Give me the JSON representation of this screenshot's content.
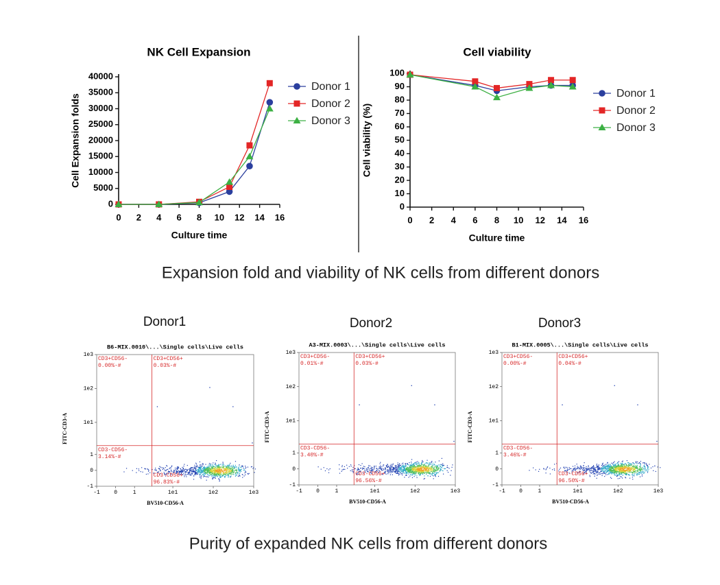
{
  "captions": [
    "Expansion fold and viability of NK cells from different donors",
    "Purity of expanded NK cells from different donors"
  ],
  "chart_data": [
    {
      "type": "line",
      "title": "NK Cell Expansion",
      "x_label": "Culture time",
      "y_label": "Cell Expansion folds",
      "x": [
        0,
        4,
        8,
        11,
        13,
        15
      ],
      "xlim": [
        0,
        16
      ],
      "xticks": [
        0,
        2,
        4,
        6,
        8,
        10,
        12,
        14,
        16
      ],
      "ylim": [
        0,
        40000
      ],
      "yticks": [
        0,
        5000,
        10000,
        15000,
        20000,
        25000,
        30000,
        35000,
        40000
      ],
      "legend": "right",
      "series": [
        {
          "name": "Donor 1",
          "color": "#2b3f9e",
          "marker": "circle",
          "values": [
            0,
            0,
            500,
            4000,
            12000,
            32000
          ]
        },
        {
          "name": "Donor 2",
          "color": "#e32626",
          "marker": "square",
          "values": [
            0,
            0,
            800,
            5500,
            18500,
            38000
          ]
        },
        {
          "name": "Donor 3",
          "color": "#3cb043",
          "marker": "triangle",
          "values": [
            0,
            0,
            600,
            7000,
            15000,
            30000
          ]
        }
      ]
    },
    {
      "type": "line",
      "title": "Cell viability",
      "x_label": "Culture time",
      "y_label": "Cell viability (%)",
      "x": [
        0,
        6,
        8,
        11,
        13,
        15
      ],
      "xlim": [
        0,
        16
      ],
      "xticks": [
        0,
        2,
        4,
        6,
        8,
        10,
        12,
        14,
        16
      ],
      "ylim": [
        0,
        100
      ],
      "yticks": [
        0,
        10,
        20,
        30,
        40,
        50,
        60,
        70,
        80,
        90,
        100
      ],
      "legend": "right",
      "series": [
        {
          "name": "Donor 1",
          "color": "#2b3f9e",
          "marker": "circle",
          "values": [
            99,
            91,
            87,
            90,
            91,
            91
          ]
        },
        {
          "name": "Donor 2",
          "color": "#e32626",
          "marker": "square",
          "values": [
            99,
            94,
            89,
            92,
            95,
            95
          ]
        },
        {
          "name": "Donor 3",
          "color": "#3cb043",
          "marker": "triangle",
          "values": [
            99,
            90,
            82,
            89,
            91,
            90
          ]
        }
      ]
    },
    {
      "type": "flow",
      "heading": "Donor1",
      "title": "B6-MIX.0010\\...\\Single cells\\Live cells",
      "x_label": "BV510-CD56-A",
      "y_label": "FITC-CD3-A",
      "scale": "biexponential",
      "xlim": [
        -1,
        1000
      ],
      "ylim": [
        -1,
        1000
      ],
      "xticks": [
        -1,
        0,
        1,
        {
          "value": 10,
          "label": "1e1"
        },
        {
          "value": 100,
          "label": "1e2"
        },
        {
          "value": 1000,
          "label": "1e3"
        }
      ],
      "yticks": [
        -1,
        0,
        1,
        {
          "value": 10,
          "label": "1e1"
        },
        {
          "value": 100,
          "label": "1e2"
        },
        {
          "value": 1000,
          "label": "1e3"
        }
      ],
      "gate": [
        3,
        2
      ],
      "color": "#d62728",
      "quadrants": [
        "CD3+CD56-",
        "CD3+CD56+",
        "CD3-CD56-",
        "CD3-CD56+"
      ],
      "values": [
        0,
        0.03,
        3.14,
        96.83
      ],
      "value_labels": [
        "0.00%-#",
        "0.03%-#",
        "3.14%-#",
        "96.83%-#"
      ]
    },
    {
      "type": "flow",
      "heading": "Donor2",
      "title": "A3-MIX.0003\\...\\Single cells\\Live cells",
      "x_label": "BV510-CD56-A",
      "y_label": "FITC-CD3-A",
      "scale": "biexponential",
      "xlim": [
        -1,
        1000
      ],
      "ylim": [
        -1,
        1000
      ],
      "xticks": [
        -1,
        0,
        1,
        {
          "value": 10,
          "label": "1e1"
        },
        {
          "value": 100,
          "label": "1e2"
        },
        {
          "value": 1000,
          "label": "1e3"
        }
      ],
      "yticks": [
        -1,
        0,
        1,
        {
          "value": 10,
          "label": "1e1"
        },
        {
          "value": 100,
          "label": "1e2"
        },
        {
          "value": 1000,
          "label": "1e3"
        }
      ],
      "gate": [
        3,
        2
      ],
      "color": "#d62728",
      "quadrants": [
        "CD3+CD56-",
        "CD3+CD56+",
        "CD3-CD56-",
        "CD3-CD56+"
      ],
      "values": [
        0.01,
        0.03,
        3.4,
        96.56
      ],
      "value_labels": [
        "0.01%-#",
        "0.03%-#",
        "3.40%-#",
        "96.56%-#"
      ]
    },
    {
      "type": "flow",
      "heading": "Donor3",
      "title": "B1-MIX.0005\\...\\Single cells\\Live cells",
      "x_label": "BV510-CD56-A",
      "y_label": "FITC-CD3-A",
      "scale": "biexponential",
      "xlim": [
        -1,
        1000
      ],
      "ylim": [
        -1,
        1000
      ],
      "xticks": [
        -1,
        0,
        1,
        {
          "value": 10,
          "label": "1e1"
        },
        {
          "value": 100,
          "label": "1e2"
        },
        {
          "value": 1000,
          "label": "1e3"
        }
      ],
      "yticks": [
        -1,
        0,
        1,
        {
          "value": 10,
          "label": "1e1"
        },
        {
          "value": 100,
          "label": "1e2"
        },
        {
          "value": 1000,
          "label": "1e3"
        }
      ],
      "gate": [
        3,
        2
      ],
      "color": "#d62728",
      "quadrants": [
        "CD3+CD56-",
        "CD3+CD56+",
        "CD3-CD56-",
        "CD3-CD56+"
      ],
      "values": [
        0.0,
        0.04,
        3.46,
        96.5
      ],
      "value_labels": [
        "0.00%-#",
        "0.04%-#",
        "3.46%-#",
        "96.50%-#"
      ]
    }
  ]
}
